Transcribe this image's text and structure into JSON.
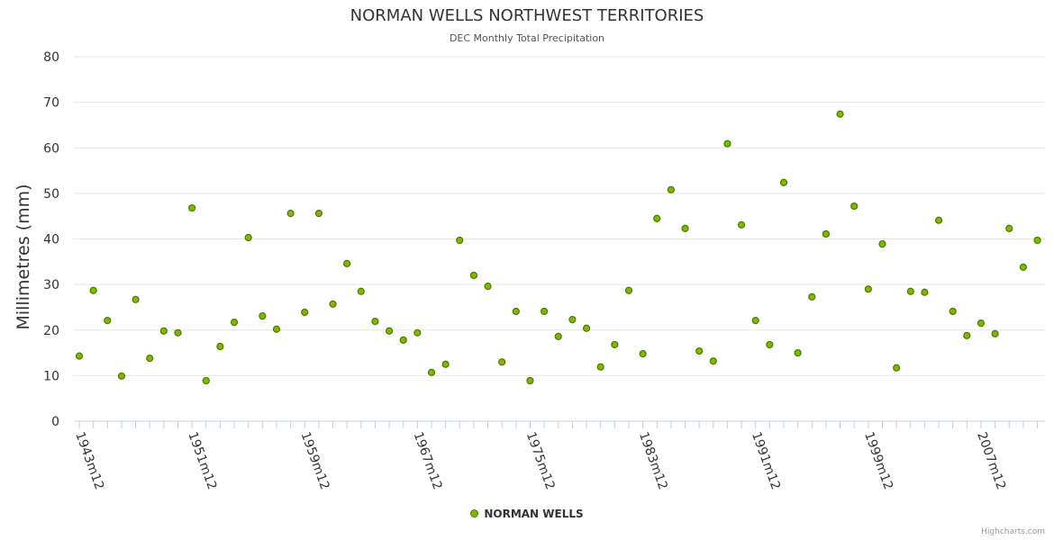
{
  "chart_data": {
    "type": "scatter",
    "title": "NORMAN WELLS NORTHWEST TERRITORIES",
    "subtitle": "DEC Monthly Total Precipitation",
    "ylabel": "Millimetres (mm)",
    "xlabel": "",
    "ylim": [
      0,
      80
    ],
    "yticks": [
      0,
      10,
      20,
      30,
      40,
      50,
      60,
      70,
      80
    ],
    "x_start_year": 1943,
    "x_tick_labels": [
      "1943m12",
      "1951m12",
      "1959m12",
      "1967m12",
      "1975m12",
      "1983m12",
      "1991m12",
      "1999m12",
      "2007m12"
    ],
    "grid": true,
    "legend_position": "bottom-center",
    "series": [
      {
        "name": "NORMAN WELLS",
        "color": "#7fb800",
        "values": [
          14.3,
          28.7,
          22.1,
          9.9,
          26.7,
          13.8,
          19.8,
          19.4,
          46.8,
          8.9,
          16.4,
          21.7,
          40.3,
          23.1,
          20.2,
          45.6,
          23.9,
          45.6,
          25.7,
          34.6,
          28.5,
          21.9,
          19.8,
          17.8,
          19.4,
          10.7,
          12.5,
          39.7,
          32.0,
          29.6,
          13.0,
          24.1,
          8.9,
          24.1,
          18.6,
          22.3,
          20.4,
          11.9,
          16.8,
          28.7,
          14.8,
          44.5,
          50.8,
          42.3,
          15.4,
          13.2,
          60.9,
          43.1,
          22.1,
          16.8,
          52.4,
          15.0,
          27.3,
          41.1,
          67.4,
          47.2,
          29.0,
          38.9,
          11.7,
          28.5,
          28.3,
          44.1,
          24.1,
          18.8,
          21.5,
          19.2,
          42.3,
          33.8,
          39.7
        ]
      }
    ]
  },
  "credits": "Highcharts.com"
}
